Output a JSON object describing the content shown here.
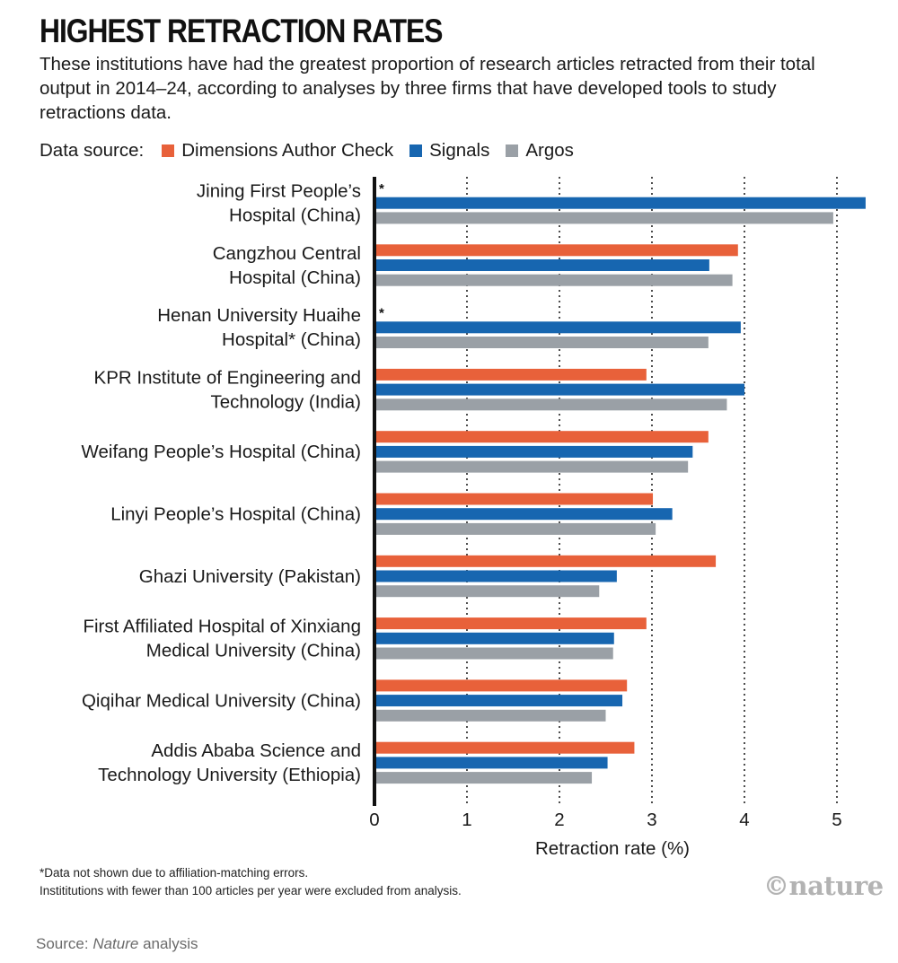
{
  "header": {
    "title": "HIGHEST RETRACTION RATES",
    "subtitle": "These institutions have had the greatest proportion of research articles retracted from their total output in 2014–24, according to analyses by three firms that have developed tools to study retractions data."
  },
  "legend": {
    "label": "Data source:",
    "items": [
      {
        "name": "Dimensions Author Check",
        "color": "#e8613a"
      },
      {
        "name": "Signals",
        "color": "#1766b0"
      },
      {
        "name": "Argos",
        "color": "#9aa0a6"
      }
    ]
  },
  "chart_data": {
    "type": "bar",
    "orientation": "horizontal",
    "categories": [
      [
        "Jining First People’s",
        "Hospital (China)"
      ],
      [
        "Cangzhou Central",
        "Hospital (China)"
      ],
      [
        "Henan University Huaihe",
        "Hospital* (China)"
      ],
      [
        "KPR Institute of Engineering and",
        "Technology (India)"
      ],
      [
        "Weifang People’s Hospital (China)"
      ],
      [
        "Linyi People’s Hospital (China)"
      ],
      [
        "Ghazi University (Pakistan)"
      ],
      [
        "First Affiliated Hospital of Xinxiang",
        "Medical University (China)"
      ],
      [
        "Qiqihar Medical University (China)"
      ],
      [
        "Addis Ababa Science and",
        "Technology University (Ethiopia)"
      ]
    ],
    "series": [
      {
        "name": "Dimensions Author Check",
        "color": "#e8613a",
        "values": [
          null,
          3.93,
          null,
          2.94,
          3.61,
          3.01,
          3.69,
          2.94,
          2.73,
          2.81
        ]
      },
      {
        "name": "Signals",
        "color": "#1766b0",
        "values": [
          5.31,
          3.62,
          3.96,
          4.0,
          3.44,
          3.22,
          2.62,
          2.59,
          2.68,
          2.52
        ]
      },
      {
        "name": "Argos",
        "color": "#9aa0a6",
        "values": [
          4.96,
          3.87,
          3.61,
          3.81,
          3.39,
          3.04,
          2.43,
          2.58,
          2.5,
          2.35
        ]
      }
    ],
    "missing_marker": "*",
    "xlabel": "Retraction rate (%)",
    "xlim": [
      0,
      5.35
    ],
    "xticks": [
      0,
      1,
      2,
      3,
      4,
      5
    ],
    "grid": "vertical dotted"
  },
  "footnotes": [
    "*Data not shown due to affiliation-matching errors.",
    "Instititutions with fewer than 100 articles per year were excluded from analysis."
  ],
  "source": {
    "prefix": "Source: ",
    "italic": "Nature",
    "suffix": " analysis"
  },
  "logo": "©nature"
}
